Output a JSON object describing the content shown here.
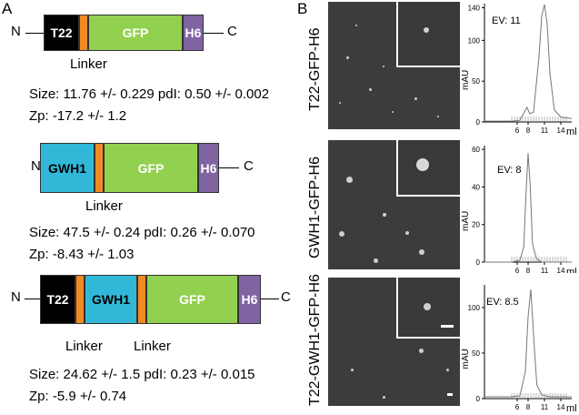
{
  "panel_a": {
    "letter": "A",
    "constructs": [
      {
        "n_term": "N",
        "c_term": "C",
        "domains": [
          {
            "label": "T22",
            "color": "#000000",
            "text_color": "#ffffff"
          },
          {
            "label": "",
            "color": "#f08a24",
            "text_color": "#000000"
          },
          {
            "label": "GFP",
            "color": "#92d050",
            "text_color": "#ffffff"
          },
          {
            "label": "H6",
            "color": "#8064a2",
            "text_color": "#ffffff"
          }
        ],
        "linker_labels": [
          "Linker"
        ],
        "stats_line1": "Size: 11.76 +/- 0.229 pdI: 0.50 +/- 0.002",
        "stats_line2": "Zp: -17.2 +/- 1.2"
      },
      {
        "n_term": "N",
        "c_term": "C",
        "domains": [
          {
            "label": "GWH1",
            "color": "#31b8d8",
            "text_color": "#000000"
          },
          {
            "label": "",
            "color": "#f08a24",
            "text_color": "#000000"
          },
          {
            "label": "GFP",
            "color": "#92d050",
            "text_color": "#ffffff"
          },
          {
            "label": "H6",
            "color": "#8064a2",
            "text_color": "#ffffff"
          }
        ],
        "linker_labels": [
          "Linker"
        ],
        "stats_line1": "Size: 47.5 +/- 0.24 pdI: 0.26 +/- 0.070",
        "stats_line2": "Zp: -8.43 +/- 1.03"
      },
      {
        "n_term": "N",
        "c_term": "C",
        "domains": [
          {
            "label": "T22",
            "color": "#000000",
            "text_color": "#ffffff"
          },
          {
            "label": "",
            "color": "#f08a24",
            "text_color": "#000000"
          },
          {
            "label": "GWH1",
            "color": "#31b8d8",
            "text_color": "#000000"
          },
          {
            "label": "",
            "color": "#f08a24",
            "text_color": "#000000"
          },
          {
            "label": "GFP",
            "color": "#92d050",
            "text_color": "#ffffff"
          },
          {
            "label": "H6",
            "color": "#8064a2",
            "text_color": "#ffffff"
          }
        ],
        "linker_labels": [
          "Linker",
          "Linker"
        ],
        "stats_line1": "Size: 24.62 +/- 1.5 pdI: 0.23 +/- 0.015",
        "stats_line2": "Zp: -5.9 +/- 0.74"
      }
    ]
  },
  "panel_b": {
    "letter": "B",
    "rows": [
      {
        "label": "T22-GFP-H6"
      },
      {
        "label": "GWH1-GFP-H6"
      },
      {
        "label": "T22-GWH1-GFP-H6"
      }
    ]
  },
  "chart_data": [
    {
      "type": "line",
      "ylabel": "mAU",
      "xlabel": "ml",
      "annotation": "EV: 11",
      "yticks": [
        0,
        50,
        100,
        140
      ],
      "xticks": [
        6,
        8,
        11,
        14
      ],
      "ylim": [
        0,
        145
      ],
      "xlim": [
        0,
        16
      ],
      "x": [
        0,
        5,
        6.5,
        7.3,
        7.8,
        8.3,
        9.0,
        10.0,
        10.5,
        11.0,
        11.5,
        12.0,
        12.8,
        14.0,
        16.0
      ],
      "y": [
        1,
        1,
        2,
        12,
        18,
        10,
        12,
        80,
        130,
        144,
        120,
        60,
        15,
        6,
        4
      ]
    },
    {
      "type": "line",
      "ylabel": "mAU",
      "xlabel": "ml",
      "annotation": "EV: 8",
      "yticks": [
        0,
        20,
        40,
        60
      ],
      "xticks": [
        6,
        8,
        11,
        14
      ],
      "ylim": [
        0,
        62
      ],
      "xlim": [
        0,
        16
      ],
      "x": [
        0,
        5,
        6.5,
        7.2,
        7.6,
        8.0,
        8.4,
        8.8,
        9.5,
        10.5,
        16.0
      ],
      "y": [
        0,
        0,
        1,
        8,
        35,
        58,
        40,
        10,
        2,
        0,
        0
      ]
    },
    {
      "type": "line",
      "ylabel": "mAU",
      "xlabel": "ml",
      "annotation": "EV: 8.5",
      "yticks": [
        0,
        50,
        100
      ],
      "xticks": [
        6,
        8,
        11,
        14
      ],
      "ylim": [
        0,
        125
      ],
      "xlim": [
        0,
        16
      ],
      "x": [
        0,
        5,
        6.5,
        7.5,
        8.0,
        8.5,
        9.0,
        9.6,
        10.5,
        12.0,
        16.0
      ],
      "y": [
        2,
        2,
        3,
        30,
        90,
        120,
        70,
        15,
        4,
        2,
        2
      ]
    }
  ]
}
